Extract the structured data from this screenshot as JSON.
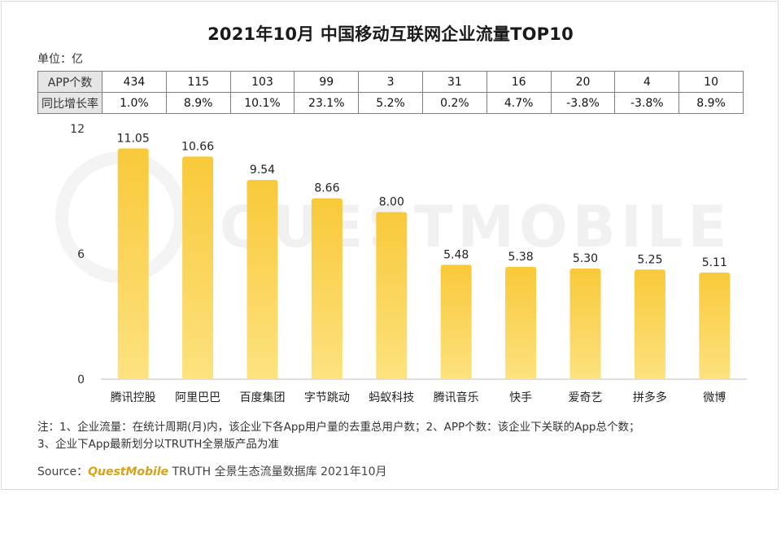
{
  "title": "2021年10月 中国移动互联网企业流量TOP10",
  "unit_label": "单位：亿",
  "table": {
    "row1_header": "APP个数",
    "row2_header": "同比增长率",
    "app_counts": [
      "434",
      "115",
      "103",
      "99",
      "3",
      "31",
      "16",
      "20",
      "4",
      "10"
    ],
    "growth_rates": [
      "1.0%",
      "8.9%",
      "10.1%",
      "23.1%",
      "5.2%",
      "0.2%",
      "4.7%",
      "-3.8%",
      "-3.8%",
      "8.9%"
    ]
  },
  "chart_data": {
    "type": "bar",
    "title": "2021年10月 中国移动互联网企业流量TOP10",
    "categories": [
      "腾讯控股",
      "阿里巴巴",
      "百度集团",
      "字节跳动",
      "蚂蚁科技",
      "腾讯音乐",
      "快手",
      "爱奇艺",
      "拼多多",
      "微博"
    ],
    "values": [
      11.05,
      10.66,
      9.54,
      8.66,
      8.0,
      5.48,
      5.38,
      5.3,
      5.25,
      5.11
    ],
    "value_labels": [
      "11.05",
      "10.66",
      "9.54",
      "8.66",
      "8.00",
      "5.48",
      "5.38",
      "5.30",
      "5.25",
      "5.11"
    ],
    "yticks": [
      "0",
      "6",
      "12"
    ],
    "ylim": [
      0,
      12
    ],
    "xlabel": "",
    "ylabel": "",
    "bar_color_top": "#f9c93a",
    "bar_color_bottom": "#fde27f"
  },
  "watermark": "QUESTMOBILE",
  "note": {
    "line1": "注：1、企业流量：在统计周期(月)内，该企业下各App用户量的去重总用户数；2、APP个数：该企业下关联的App总个数；",
    "line2": "3、企业下App最新划分以TRUTH全景版产品为准"
  },
  "source": {
    "prefix": "Source：",
    "brand": "QuestMobile",
    "suffix": " TRUTH 全景生态流量数据库 2021年10月"
  }
}
